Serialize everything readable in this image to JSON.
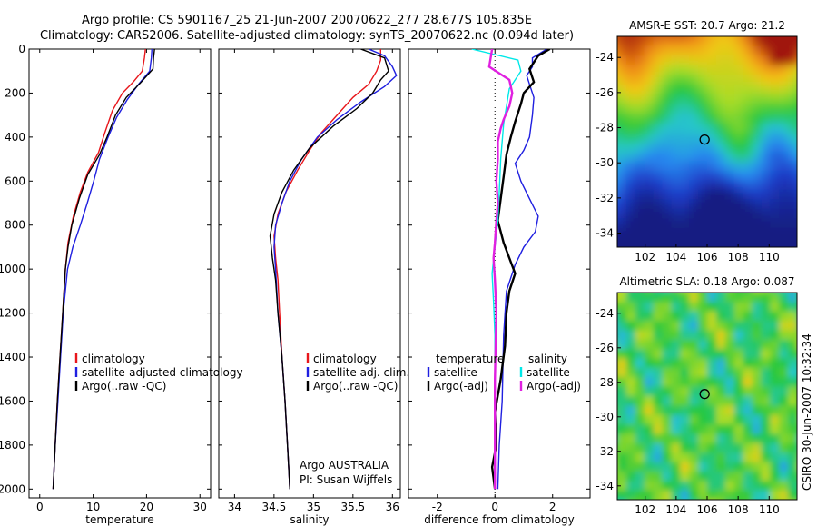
{
  "header": {
    "title_line1": "Argo profile: CS 5901167_25 21-Jun-2007 20070622_277 28.677S 105.835E",
    "title_line2": "Climatology: CARS2006. Satellite-adjusted climatology: synTS_20070622.nc (0.094d later)"
  },
  "footer": {
    "credit": "CSIRO 30-Jun-2007 10:32:34",
    "argo_note_1": "Argo AUSTRALIA",
    "argo_note_2": "PI: Susan Wijffels"
  },
  "colors": {
    "climatology": "#e8161b",
    "satellite": "#1f1fe0",
    "argo": "#000000",
    "cyan": "#00e8e8",
    "magenta": "#e020e0"
  },
  "chart_data": [
    {
      "type": "line",
      "id": "temperature",
      "xlabel": "temperature",
      "ylabel": "",
      "xlim": [
        -2,
        32
      ],
      "ylim": [
        2040,
        0
      ],
      "y_inverted": true,
      "xticks": [
        0,
        10,
        20,
        30
      ],
      "yticks": [
        0,
        200,
        400,
        600,
        800,
        1000,
        1200,
        1400,
        1600,
        1800,
        2000
      ],
      "legend": [
        "climatology",
        "satellite-adjusted climatology",
        "Argo(..raw -QC)"
      ],
      "series": [
        {
          "name": "climatology",
          "color": "#e8161b",
          "points": [
            [
              19.8,
              0
            ],
            [
              19.6,
              40
            ],
            [
              19.2,
              100
            ],
            [
              17.5,
              150
            ],
            [
              15.5,
              200
            ],
            [
              13.6,
              280
            ],
            [
              12.2,
              380
            ],
            [
              11.0,
              470
            ],
            [
              9.0,
              560
            ],
            [
              7.6,
              650
            ],
            [
              6.3,
              760
            ],
            [
              5.3,
              880
            ],
            [
              4.8,
              1000
            ],
            [
              4.3,
              1200
            ],
            [
              3.8,
              1400
            ],
            [
              3.3,
              1600
            ],
            [
              2.9,
              1800
            ],
            [
              2.5,
              2000
            ]
          ]
        },
        {
          "name": "satellite-adjusted climatology",
          "color": "#1f1fe0",
          "points": [
            [
              21.0,
              0
            ],
            [
              20.9,
              40
            ],
            [
              20.6,
              100
            ],
            [
              18.5,
              160
            ],
            [
              16.4,
              230
            ],
            [
              14.4,
              310
            ],
            [
              12.8,
              400
            ],
            [
              11.2,
              500
            ],
            [
              10.1,
              600
            ],
            [
              8.9,
              700
            ],
            [
              7.6,
              800
            ],
            [
              6.2,
              900
            ],
            [
              5.2,
              1000
            ],
            [
              4.4,
              1200
            ],
            [
              3.9,
              1400
            ],
            [
              3.4,
              1600
            ],
            [
              2.9,
              1800
            ],
            [
              2.5,
              2000
            ]
          ]
        },
        {
          "name": "Argo(..raw -QC)",
          "color": "#000000",
          "points": [
            [
              21.5,
              0
            ],
            [
              21.3,
              40
            ],
            [
              21.2,
              90
            ],
            [
              19.0,
              150
            ],
            [
              16.2,
              220
            ],
            [
              14.2,
              300
            ],
            [
              12.6,
              400
            ],
            [
              11.2,
              480
            ],
            [
              9.0,
              570
            ],
            [
              7.4,
              680
            ],
            [
              6.0,
              800
            ],
            [
              5.3,
              900
            ],
            [
              4.8,
              1000
            ],
            [
              4.3,
              1200
            ],
            [
              3.8,
              1400
            ],
            [
              3.3,
              1600
            ],
            [
              2.9,
              1800
            ],
            [
              2.5,
              2000
            ]
          ]
        }
      ]
    },
    {
      "type": "line",
      "id": "salinity",
      "xlabel": "salinity",
      "ylabel": "",
      "xlim": [
        33.8,
        36.1
      ],
      "ylim": [
        2040,
        0
      ],
      "y_inverted": true,
      "xticks": [
        34,
        34.5,
        35,
        35.5,
        36
      ],
      "legend": [
        "climatology",
        "satellite adj. clim.",
        "Argo(..raw -QC)"
      ],
      "series": [
        {
          "name": "climatology",
          "color": "#e8161b",
          "points": [
            [
              35.85,
              0
            ],
            [
              35.85,
              50
            ],
            [
              35.8,
              100
            ],
            [
              35.7,
              160
            ],
            [
              35.5,
              220
            ],
            [
              35.3,
              300
            ],
            [
              35.1,
              380
            ],
            [
              34.95,
              460
            ],
            [
              34.8,
              550
            ],
            [
              34.65,
              650
            ],
            [
              34.55,
              750
            ],
            [
              34.5,
              850
            ],
            [
              34.52,
              950
            ],
            [
              34.55,
              1050
            ],
            [
              34.57,
              1200
            ],
            [
              34.6,
              1400
            ],
            [
              34.64,
              1600
            ],
            [
              34.67,
              1800
            ],
            [
              34.7,
              2000
            ]
          ]
        },
        {
          "name": "satellite adj. clim.",
          "color": "#1f1fe0",
          "points": [
            [
              35.7,
              0
            ],
            [
              35.9,
              30
            ],
            [
              36.0,
              80
            ],
            [
              36.05,
              120
            ],
            [
              35.9,
              170
            ],
            [
              35.6,
              240
            ],
            [
              35.3,
              320
            ],
            [
              35.05,
              400
            ],
            [
              34.85,
              500
            ],
            [
              34.7,
              600
            ],
            [
              34.6,
              700
            ],
            [
              34.52,
              800
            ],
            [
              34.5,
              900
            ],
            [
              34.52,
              1000
            ],
            [
              34.55,
              1200
            ],
            [
              34.6,
              1400
            ],
            [
              34.64,
              1600
            ],
            [
              34.67,
              1800
            ],
            [
              34.7,
              2000
            ]
          ]
        },
        {
          "name": "Argo(..raw -QC)",
          "color": "#000000",
          "points": [
            [
              35.6,
              0
            ],
            [
              35.9,
              40
            ],
            [
              35.95,
              100
            ],
            [
              35.85,
              140
            ],
            [
              35.75,
              200
            ],
            [
              35.55,
              270
            ],
            [
              35.25,
              350
            ],
            [
              34.95,
              450
            ],
            [
              34.75,
              550
            ],
            [
              34.6,
              650
            ],
            [
              34.5,
              750
            ],
            [
              34.45,
              850
            ],
            [
              34.48,
              950
            ],
            [
              34.52,
              1050
            ],
            [
              34.55,
              1200
            ],
            [
              34.6,
              1400
            ],
            [
              34.64,
              1600
            ],
            [
              34.67,
              1800
            ],
            [
              34.7,
              2000
            ]
          ]
        }
      ]
    },
    {
      "type": "line",
      "id": "difference",
      "xlabel": "difference from climatology",
      "ylabel": "",
      "xlim": [
        -3,
        3.3
      ],
      "ylim": [
        2040,
        0
      ],
      "y_inverted": true,
      "xticks": [
        -2,
        0,
        2
      ],
      "legend": [
        "temperature",
        "satellite",
        "Argo(-adj)",
        "salinity",
        "satellite",
        "Argo(-adj)"
      ],
      "series": [
        {
          "name": "satellite",
          "color": "#1f1fe0",
          "points": [
            [
              1.8,
              0
            ],
            [
              1.3,
              40
            ],
            [
              1.3,
              80
            ],
            [
              1.1,
              120
            ],
            [
              1.2,
              160
            ],
            [
              1.35,
              220
            ],
            [
              1.3,
              300
            ],
            [
              1.2,
              400
            ],
            [
              1.0,
              460
            ],
            [
              0.7,
              520
            ],
            [
              0.9,
              600
            ],
            [
              1.2,
              680
            ],
            [
              1.5,
              760
            ],
            [
              1.4,
              830
            ],
            [
              1.0,
              900
            ],
            [
              0.7,
              980
            ],
            [
              0.4,
              1100
            ],
            [
              0.3,
              1300
            ],
            [
              0.25,
              1600
            ],
            [
              0.15,
              1800
            ],
            [
              0.1,
              2000
            ]
          ]
        },
        {
          "name": "Argo(-adj) T",
          "color": "#000000",
          "points": [
            [
              1.9,
              0
            ],
            [
              1.5,
              30
            ],
            [
              1.2,
              90
            ],
            [
              1.35,
              150
            ],
            [
              1.0,
              200
            ],
            [
              0.9,
              250
            ],
            [
              0.7,
              330
            ],
            [
              0.55,
              400
            ],
            [
              0.4,
              480
            ],
            [
              0.3,
              580
            ],
            [
              0.2,
              680
            ],
            [
              0.1,
              780
            ],
            [
              0.3,
              880
            ],
            [
              0.5,
              950
            ],
            [
              0.7,
              1020
            ],
            [
              0.5,
              1100
            ],
            [
              0.4,
              1200
            ],
            [
              0.35,
              1350
            ],
            [
              0.2,
              1500
            ],
            [
              0.0,
              1650
            ],
            [
              0.05,
              1800
            ],
            [
              -0.1,
              1900
            ],
            [
              0.0,
              2000
            ]
          ]
        },
        {
          "name": "satellite S",
          "color": "#00e8e8",
          "points": [
            [
              -0.8,
              0
            ],
            [
              0.8,
              50
            ],
            [
              0.9,
              100
            ],
            [
              0.5,
              180
            ],
            [
              0.4,
              260
            ],
            [
              0.3,
              340
            ],
            [
              0.25,
              420
            ],
            [
              0.2,
              500
            ],
            [
              0.15,
              650
            ],
            [
              0.1,
              780
            ],
            [
              0.0,
              900
            ],
            [
              -0.1,
              1020
            ],
            [
              -0.05,
              1150
            ],
            [
              0.0,
              1300
            ],
            [
              0.0,
              1600
            ],
            [
              0.0,
              1800
            ],
            [
              0.0,
              2000
            ]
          ]
        },
        {
          "name": "Argo(-adj) S",
          "color": "#e020e0",
          "points": [
            [
              -0.1,
              0
            ],
            [
              -0.2,
              80
            ],
            [
              0.5,
              140
            ],
            [
              0.6,
              200
            ],
            [
              0.5,
              260
            ],
            [
              0.3,
              320
            ],
            [
              0.2,
              360
            ],
            [
              0.1,
              420
            ],
            [
              0.1,
              500
            ],
            [
              0.05,
              600
            ],
            [
              0.1,
              700
            ],
            [
              0.05,
              780
            ],
            [
              0.0,
              880
            ],
            [
              -0.05,
              950
            ],
            [
              0.0,
              1050
            ],
            [
              0.05,
              1200
            ],
            [
              0.0,
              1500
            ],
            [
              0.0,
              1800
            ],
            [
              0.0,
              2000
            ]
          ]
        }
      ]
    },
    {
      "type": "heatmap",
      "id": "sst_map",
      "title": "AMSR-E SST: 20.7 Argo: 21.2",
      "xlim": [
        100.2,
        111.8
      ],
      "ylim": [
        -34.8,
        -22.8
      ],
      "xticks": [
        102,
        104,
        106,
        108,
        110
      ],
      "yticks": [
        -24,
        -26,
        -28,
        -30,
        -32,
        -34
      ],
      "marker": [
        105.835,
        -28.677
      ]
    },
    {
      "type": "heatmap",
      "id": "sla_map",
      "title": "Altimetric SLA: 0.18 Argo: 0.087",
      "xlim": [
        100.2,
        111.8
      ],
      "ylim": [
        -34.8,
        -22.8
      ],
      "xticks": [
        102,
        104,
        106,
        108,
        110
      ],
      "yticks": [
        -24,
        -26,
        -28,
        -30,
        -32,
        -34
      ],
      "marker": [
        105.835,
        -28.677
      ]
    }
  ]
}
